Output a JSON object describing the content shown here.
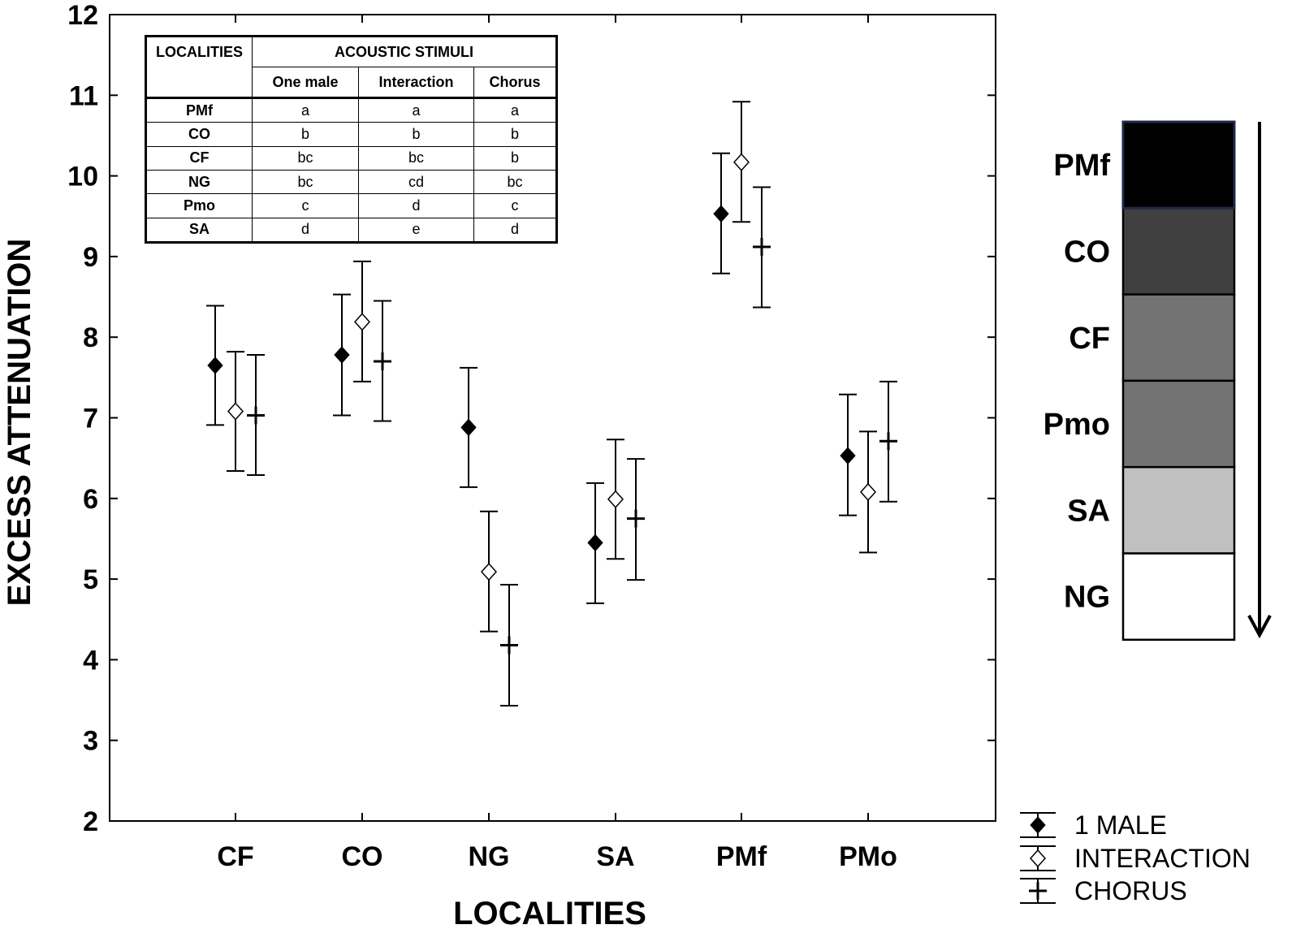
{
  "chart_data": {
    "type": "scatter",
    "variant": "means-with-error-bars",
    "xlabel": "LOCALITIES",
    "ylabel": "EXCESS ATTENUATION",
    "categories": [
      "CF",
      "CO",
      "NG",
      "SA",
      "PMf",
      "PMo"
    ],
    "ylim": [
      2,
      12
    ],
    "yticks": [
      "2",
      "3",
      "4",
      "5",
      "6",
      "7",
      "8",
      "9",
      "10",
      "11",
      "12"
    ],
    "grid": false,
    "legend_position": "bottom-right",
    "series": [
      {
        "name": "1 MALE",
        "marker": "filled-diamond",
        "values": [
          7.65,
          7.78,
          6.88,
          5.45,
          9.53,
          6.53
        ],
        "lower": [
          6.91,
          7.03,
          6.14,
          4.7,
          8.79,
          5.79
        ],
        "upper": [
          8.39,
          8.53,
          7.62,
          6.19,
          10.28,
          7.29
        ]
      },
      {
        "name": "INTERACTION",
        "marker": "open-diamond",
        "values": [
          7.08,
          8.19,
          5.09,
          5.99,
          10.17,
          6.08
        ],
        "lower": [
          6.34,
          7.45,
          4.35,
          5.25,
          9.43,
          5.33
        ],
        "upper": [
          7.82,
          8.94,
          5.84,
          6.73,
          10.92,
          6.83
        ]
      },
      {
        "name": "CHORUS",
        "marker": "plus",
        "values": [
          7.03,
          7.7,
          4.18,
          5.75,
          9.12,
          6.71
        ],
        "lower": [
          6.29,
          6.96,
          3.43,
          4.99,
          8.37,
          5.96
        ],
        "upper": [
          7.78,
          8.45,
          4.93,
          6.49,
          9.86,
          7.45
        ]
      }
    ]
  },
  "inset_table": {
    "col_header": "LOCALITIES",
    "group_header": "ACOUSTIC STIMULI",
    "sub_headers": [
      "One male",
      "Interaction",
      "Chorus"
    ],
    "rows": [
      {
        "loc": "PMf",
        "vals": [
          "a",
          "a",
          "a"
        ]
      },
      {
        "loc": "CO",
        "vals": [
          "b",
          "b",
          "b"
        ]
      },
      {
        "loc": "CF",
        "vals": [
          "bc",
          "bc",
          "b"
        ]
      },
      {
        "loc": "NG",
        "vals": [
          "bc",
          "cd",
          "bc"
        ]
      },
      {
        "loc": "Pmo",
        "vals": [
          "c",
          "d",
          "c"
        ]
      },
      {
        "loc": "SA",
        "vals": [
          "d",
          "e",
          "d"
        ]
      }
    ]
  },
  "gradient_scale": {
    "items": [
      {
        "label": "PMf",
        "color": "#000000"
      },
      {
        "label": "CO",
        "color": "#404040"
      },
      {
        "label": "CF",
        "color": "#737373"
      },
      {
        "label": "Pmo",
        "color": "#737373"
      },
      {
        "label": "SA",
        "color": "#c0c0c0"
      },
      {
        "label": "NG",
        "color": "#ffffff"
      }
    ],
    "top_border_color": "#1f2a4a"
  }
}
